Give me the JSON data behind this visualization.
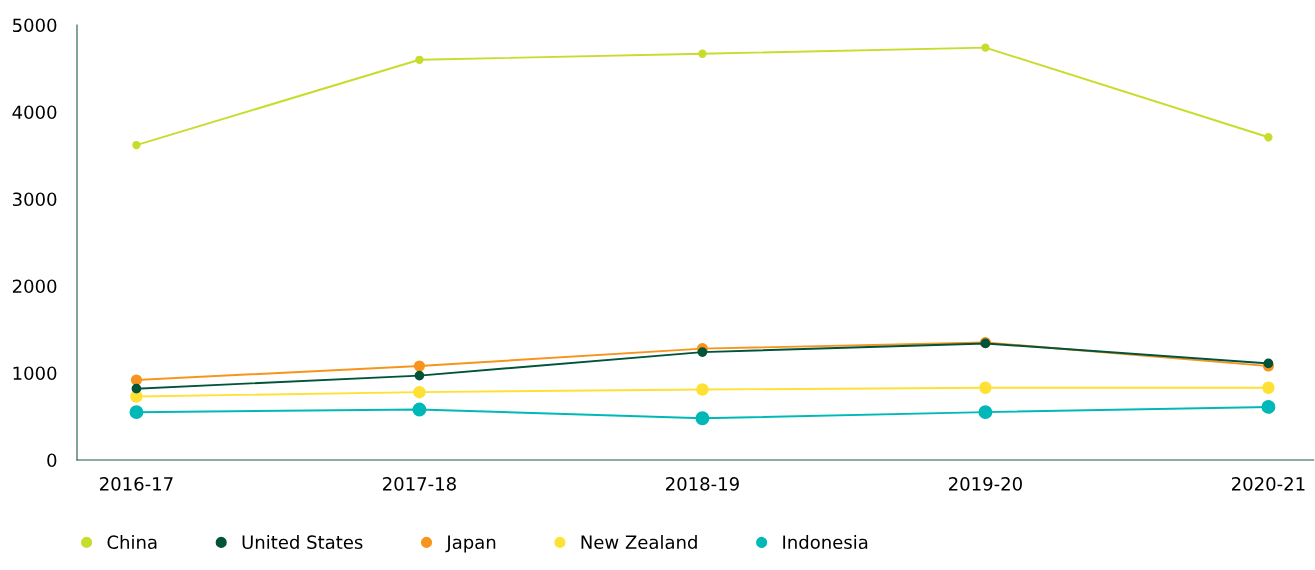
{
  "chart_data": {
    "type": "line",
    "categories": [
      "2016-17",
      "2017-18",
      "2018-19",
      "2019-20",
      "2020-21"
    ],
    "series": [
      {
        "name": "China",
        "color": "#c8dc2c",
        "values": [
          3620,
          4600,
          4670,
          4740,
          3710
        ]
      },
      {
        "name": "United States",
        "color": "#00543a",
        "values": [
          820,
          970,
          1240,
          1340,
          1110
        ]
      },
      {
        "name": "Japan",
        "color": "#f7941d",
        "values": [
          920,
          1080,
          1280,
          1350,
          1080
        ]
      },
      {
        "name": "New Zealand",
        "color": "#ffe135",
        "values": [
          730,
          780,
          810,
          830,
          830
        ]
      },
      {
        "name": "Indonesia",
        "color": "#00b8b8",
        "values": [
          550,
          580,
          480,
          550,
          610
        ]
      }
    ],
    "ylim": [
      0,
      5000
    ],
    "yticks": [
      0,
      1000,
      2000,
      3000,
      4000,
      5000
    ],
    "grid": false,
    "legend": "bottom",
    "marker": "circle",
    "line_style": "solid"
  }
}
